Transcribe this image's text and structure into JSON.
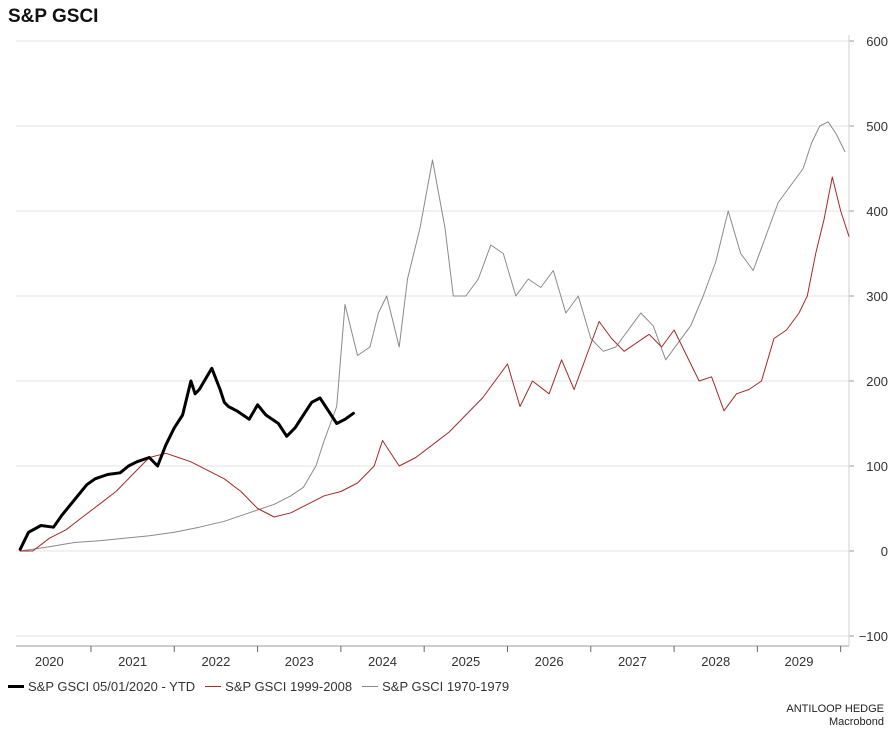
{
  "title": "S&P GSCI",
  "chart_data": {
    "type": "line",
    "title": "S&P GSCI",
    "ylim": [
      -100,
      600
    ],
    "y_ticks": [
      -100,
      0,
      100,
      200,
      300,
      400,
      500,
      600
    ],
    "x_ticks": [
      "2020",
      "2021",
      "2022",
      "2023",
      "2024",
      "2025",
      "2026",
      "2027",
      "2028",
      "2029"
    ],
    "x_range": [
      2019.6,
      2029.6
    ],
    "grid": true,
    "legend_position": "bottom-left",
    "series": [
      {
        "name": "S&P GSCI 05/01/2020 - YTD",
        "color": "#000000",
        "x": [
          2019.65,
          2019.75,
          2019.9,
          2020.05,
          2020.15,
          2020.3,
          2020.45,
          2020.55,
          2020.7,
          2020.85,
          2020.95,
          2021.05,
          2021.2,
          2021.3,
          2021.4,
          2021.5,
          2021.6,
          2021.7,
          2021.75,
          2021.8,
          2021.95,
          2022.05,
          2022.1,
          2022.15,
          2022.25,
          2022.4,
          2022.5,
          2022.6,
          2022.75,
          2022.85,
          2022.95,
          2023.05,
          2023.15,
          2023.25,
          2023.35,
          2023.45,
          2023.55,
          2023.65
        ],
        "values": [
          2,
          22,
          30,
          28,
          42,
          60,
          78,
          85,
          90,
          92,
          100,
          105,
          110,
          100,
          125,
          145,
          160,
          200,
          185,
          190,
          215,
          190,
          175,
          170,
          165,
          155,
          172,
          160,
          150,
          135,
          145,
          160,
          175,
          180,
          165,
          150,
          155,
          162
        ]
      },
      {
        "name": "S&P GSCI 1999-2008",
        "color": "#a52a24",
        "x": [
          2019.65,
          2019.8,
          2020.0,
          2020.2,
          2020.4,
          2020.6,
          2020.8,
          2021.0,
          2021.2,
          2021.4,
          2021.55,
          2021.7,
          2021.9,
          2022.1,
          2022.3,
          2022.5,
          2022.7,
          2022.9,
          2023.1,
          2023.3,
          2023.5,
          2023.7,
          2023.9,
          2024.0,
          2024.2,
          2024.4,
          2024.6,
          2024.8,
          2025.0,
          2025.2,
          2025.35,
          2025.5,
          2025.65,
          2025.8,
          2026.0,
          2026.15,
          2026.3,
          2026.45,
          2026.6,
          2026.75,
          2026.9,
          2027.05,
          2027.2,
          2027.35,
          2027.5,
          2027.65,
          2027.8,
          2027.95,
          2028.1,
          2028.25,
          2028.4,
          2028.55,
          2028.7,
          2028.85,
          2029.0,
          2029.1,
          2029.2,
          2029.3,
          2029.4,
          2029.5,
          2029.6
        ],
        "values": [
          0,
          0,
          15,
          25,
          40,
          55,
          70,
          90,
          110,
          115,
          110,
          105,
          95,
          85,
          70,
          50,
          40,
          45,
          55,
          65,
          70,
          80,
          100,
          130,
          100,
          110,
          125,
          140,
          160,
          180,
          200,
          220,
          170,
          200,
          185,
          225,
          190,
          230,
          270,
          250,
          235,
          245,
          255,
          240,
          260,
          230,
          200,
          205,
          165,
          185,
          190,
          200,
          250,
          260,
          280,
          300,
          350,
          390,
          440,
          400,
          370
        ]
      },
      {
        "name": "S&P GSCI 1970-1979",
        "color": "#8a8a8a",
        "x": [
          2019.65,
          2019.8,
          2020.0,
          2020.3,
          2020.6,
          2020.9,
          2021.2,
          2021.5,
          2021.8,
          2022.1,
          2022.4,
          2022.7,
          2022.9,
          2023.05,
          2023.2,
          2023.3,
          2023.45,
          2023.55,
          2023.7,
          2023.85,
          2023.95,
          2024.05,
          2024.2,
          2024.3,
          2024.45,
          2024.6,
          2024.75,
          2024.85,
          2025.0,
          2025.15,
          2025.3,
          2025.45,
          2025.6,
          2025.75,
          2025.9,
          2026.05,
          2026.2,
          2026.35,
          2026.5,
          2026.65,
          2026.8,
          2026.95,
          2027.1,
          2027.25,
          2027.4,
          2027.55,
          2027.7,
          2027.85,
          2028.0,
          2028.15,
          2028.3,
          2028.45,
          2028.6,
          2028.75,
          2028.9,
          2029.05,
          2029.15,
          2029.25,
          2029.35,
          2029.45,
          2029.55
        ],
        "values": [
          0,
          2,
          5,
          10,
          12,
          15,
          18,
          22,
          28,
          35,
          45,
          55,
          65,
          75,
          100,
          130,
          170,
          290,
          230,
          240,
          280,
          300,
          240,
          320,
          380,
          460,
          380,
          300,
          300,
          320,
          360,
          350,
          300,
          320,
          310,
          330,
          280,
          300,
          250,
          235,
          240,
          260,
          280,
          265,
          225,
          245,
          265,
          300,
          340,
          400,
          350,
          330,
          370,
          410,
          430,
          450,
          480,
          500,
          505,
          490,
          470
        ]
      }
    ]
  },
  "legend": [
    {
      "label": "S&P GSCI 05/01/2020 - YTD",
      "color": "#000000"
    },
    {
      "label": "S&P GSCI 1999-2008",
      "color": "#a52a24"
    },
    {
      "label": "S&P GSCI 1970-1979",
      "color": "#8a8a8a"
    }
  ],
  "source": {
    "line1": "ANTILOOP HEDGE",
    "line2": "Macrobond"
  }
}
